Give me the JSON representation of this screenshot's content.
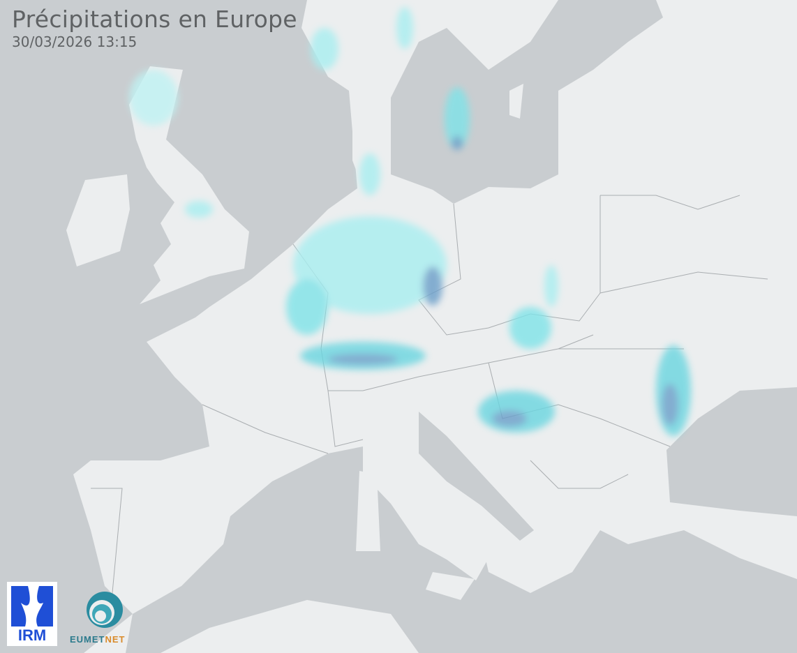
{
  "map": {
    "title": "Précipitations en Europe",
    "timestamp": "30/03/2026 13:15",
    "colors": {
      "land": "#eceeef",
      "sea": "#c9cdd0",
      "border": "#a9adb0",
      "rain_light": "#7fe3e8",
      "rain_moderate": "#6a9ec9"
    }
  },
  "logos": {
    "irm": "IRM",
    "eumetnet_a": "EUMET",
    "eumetnet_b": "NET"
  }
}
